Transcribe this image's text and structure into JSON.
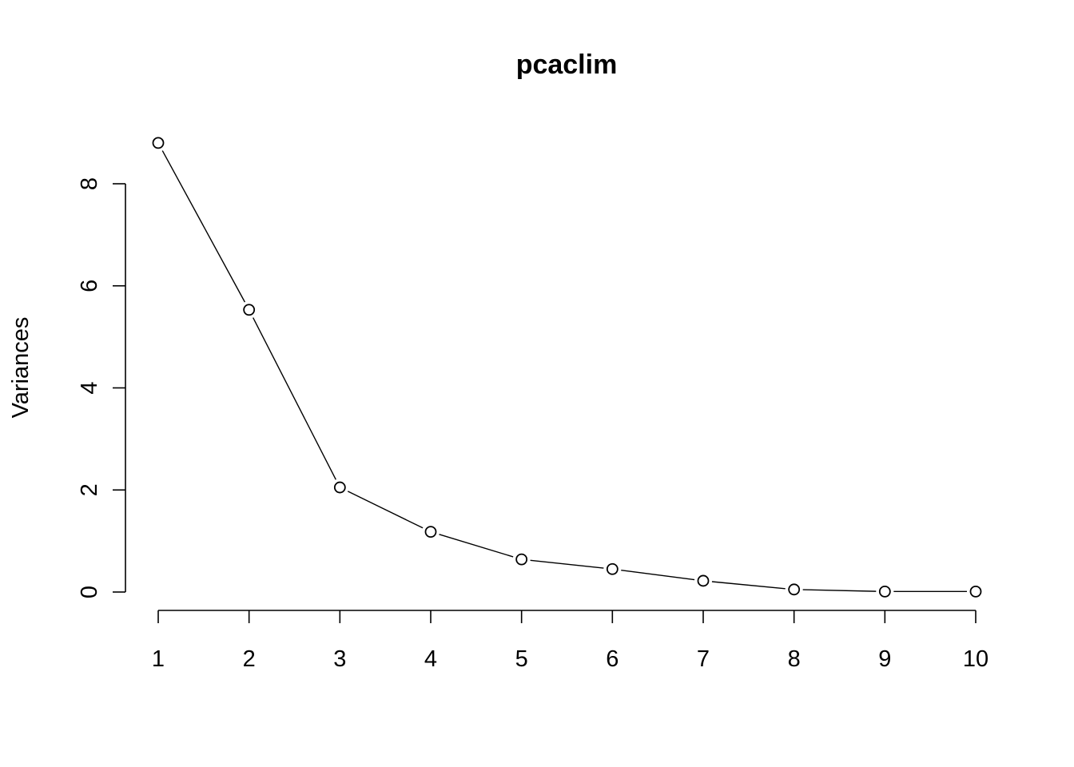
{
  "chart_data": {
    "type": "line",
    "title": "pcaclim",
    "xlabel": "",
    "ylabel": "Variances",
    "x": [
      1,
      2,
      3,
      4,
      5,
      6,
      7,
      8,
      9,
      10
    ],
    "x_ticks": [
      1,
      2,
      3,
      4,
      5,
      6,
      7,
      8,
      9,
      10
    ],
    "y_ticks": [
      0,
      2,
      4,
      6,
      8
    ],
    "ylim": [
      0,
      8
    ],
    "xlim": [
      1,
      10
    ],
    "grid": false,
    "legend": "none",
    "series": [
      {
        "values": [
          8.8,
          5.53,
          2.05,
          1.18,
          0.64,
          0.45,
          0.22,
          0.05,
          0.01,
          0.01
        ],
        "marker": "open-circle",
        "color": "#000000"
      }
    ]
  }
}
